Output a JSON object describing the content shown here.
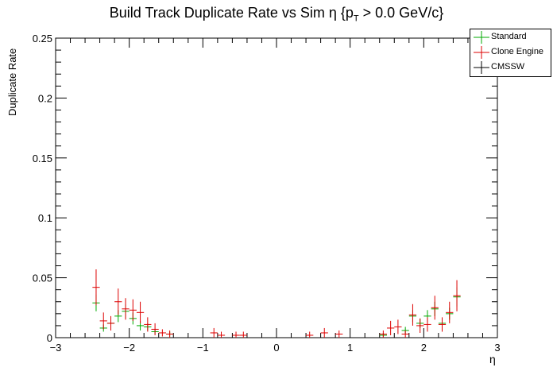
{
  "chart_data": {
    "type": "scatter",
    "title_main": "Build Track Duplicate Rate vs Sim η {p",
    "title_sub": "T",
    "title_tail": " > 0.0 GeV/c}",
    "xlabel": "η",
    "ylabel": "Duplicate Rate",
    "xlim": [
      -3,
      3
    ],
    "ylim": [
      0,
      0.25
    ],
    "x_ticks": [
      "−3",
      "−2",
      "−1",
      "0",
      "1",
      "2",
      "3"
    ],
    "y_ticks": [
      "0",
      "0.05",
      "0.1",
      "0.15",
      "0.2",
      "0.25"
    ],
    "legend_position": "top-right",
    "series": [
      {
        "name": "Standard",
        "color": "#00aa00",
        "points": [
          {
            "x": -2.45,
            "y": 0.029,
            "err": 0.007
          },
          {
            "x": -2.35,
            "y": 0.008,
            "err": 0.003
          },
          {
            "x": -2.25,
            "y": 0.012,
            "err": 0.004
          },
          {
            "x": -2.15,
            "y": 0.018,
            "err": 0.005
          },
          {
            "x": -2.05,
            "y": 0.022,
            "err": 0.006
          },
          {
            "x": -1.95,
            "y": 0.016,
            "err": 0.005
          },
          {
            "x": -1.85,
            "y": 0.01,
            "err": 0.004
          },
          {
            "x": -1.75,
            "y": 0.009,
            "err": 0.003
          },
          {
            "x": -1.65,
            "y": 0.005,
            "err": 0.002
          },
          {
            "x": -1.45,
            "y": 0.003,
            "err": 0.002
          },
          {
            "x": 1.45,
            "y": 0.002,
            "err": 0.002
          },
          {
            "x": 1.75,
            "y": 0.006,
            "err": 0.003
          },
          {
            "x": 1.85,
            "y": 0.018,
            "err": 0.005
          },
          {
            "x": 1.95,
            "y": 0.012,
            "err": 0.004
          },
          {
            "x": 2.05,
            "y": 0.018,
            "err": 0.005
          },
          {
            "x": 2.15,
            "y": 0.024,
            "err": 0.006
          },
          {
            "x": 2.25,
            "y": 0.012,
            "err": 0.004
          },
          {
            "x": 2.35,
            "y": 0.02,
            "err": 0.005
          },
          {
            "x": 2.45,
            "y": 0.034,
            "err": 0.008
          }
        ]
      },
      {
        "name": "Clone Engine",
        "color": "#dd0000",
        "points": [
          {
            "x": -2.45,
            "y": 0.042,
            "err": 0.015
          },
          {
            "x": -2.35,
            "y": 0.014,
            "err": 0.007
          },
          {
            "x": -2.25,
            "y": 0.012,
            "err": 0.006
          },
          {
            "x": -2.15,
            "y": 0.03,
            "err": 0.011
          },
          {
            "x": -2.05,
            "y": 0.024,
            "err": 0.009
          },
          {
            "x": -1.95,
            "y": 0.023,
            "err": 0.009
          },
          {
            "x": -1.85,
            "y": 0.021,
            "err": 0.009
          },
          {
            "x": -1.75,
            "y": 0.011,
            "err": 0.006
          },
          {
            "x": -1.65,
            "y": 0.007,
            "err": 0.005
          },
          {
            "x": -1.55,
            "y": 0.004,
            "err": 0.003
          },
          {
            "x": -1.45,
            "y": 0.003,
            "err": 0.003
          },
          {
            "x": -0.85,
            "y": 0.004,
            "err": 0.004
          },
          {
            "x": -0.75,
            "y": 0.002,
            "err": 0.003
          },
          {
            "x": -0.55,
            "y": 0.002,
            "err": 0.003
          },
          {
            "x": -0.45,
            "y": 0.002,
            "err": 0.003
          },
          {
            "x": 0.45,
            "y": 0.002,
            "err": 0.003
          },
          {
            "x": 0.65,
            "y": 0.004,
            "err": 0.004
          },
          {
            "x": 0.85,
            "y": 0.003,
            "err": 0.003
          },
          {
            "x": 1.45,
            "y": 0.003,
            "err": 0.003
          },
          {
            "x": 1.55,
            "y": 0.008,
            "err": 0.006
          },
          {
            "x": 1.65,
            "y": 0.009,
            "err": 0.006
          },
          {
            "x": 1.75,
            "y": 0.003,
            "err": 0.003
          },
          {
            "x": 1.85,
            "y": 0.019,
            "err": 0.009
          },
          {
            "x": 1.95,
            "y": 0.01,
            "err": 0.006
          },
          {
            "x": 2.05,
            "y": 0.011,
            "err": 0.006
          },
          {
            "x": 2.15,
            "y": 0.025,
            "err": 0.01
          },
          {
            "x": 2.25,
            "y": 0.011,
            "err": 0.006
          },
          {
            "x": 2.35,
            "y": 0.021,
            "err": 0.009
          },
          {
            "x": 2.45,
            "y": 0.035,
            "err": 0.013
          }
        ]
      },
      {
        "name": "CMSSW",
        "color": "#000000",
        "points": []
      }
    ]
  }
}
